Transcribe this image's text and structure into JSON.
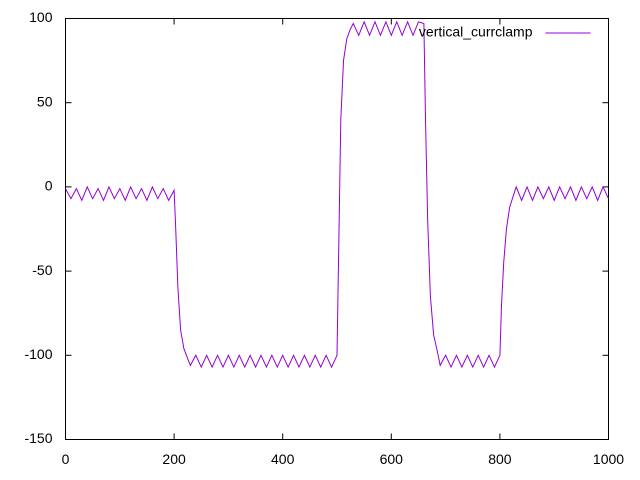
{
  "chart_data": {
    "type": "line",
    "x": [
      0,
      10,
      20,
      30,
      40,
      50,
      60,
      70,
      80,
      90,
      100,
      110,
      120,
      130,
      140,
      150,
      160,
      170,
      180,
      190,
      200,
      203,
      207,
      212,
      218,
      225,
      230,
      240,
      250,
      260,
      270,
      280,
      290,
      300,
      310,
      320,
      330,
      340,
      350,
      360,
      370,
      380,
      390,
      400,
      410,
      420,
      430,
      440,
      450,
      460,
      470,
      480,
      490,
      500,
      503,
      507,
      512,
      518,
      525,
      530,
      540,
      550,
      560,
      570,
      580,
      590,
      600,
      610,
      620,
      630,
      640,
      650,
      660,
      663,
      667,
      672,
      678,
      685,
      690,
      700,
      710,
      720,
      730,
      740,
      750,
      760,
      770,
      780,
      790,
      800,
      803,
      807,
      812,
      818,
      825,
      830,
      840,
      850,
      860,
      870,
      880,
      890,
      900,
      910,
      920,
      930,
      940,
      950,
      960,
      970,
      980,
      990,
      1000
    ],
    "series": [
      {
        "name": "vertical_currclamp",
        "color": "#9400d3",
        "values": [
          -1,
          -7,
          -1,
          -8,
          0,
          -7,
          -1,
          -8,
          0,
          -7,
          -1,
          -8,
          0,
          -7,
          -1,
          -8,
          0,
          -7,
          -1,
          -8,
          -2,
          -25,
          -60,
          -85,
          -96,
          -102,
          -106,
          -100,
          -107,
          -100,
          -107,
          -100,
          -107,
          -100,
          -107,
          -100,
          -107,
          -100,
          -107,
          -100,
          -107,
          -100,
          -107,
          -100,
          -107,
          -100,
          -107,
          -100,
          -107,
          -100,
          -107,
          -100,
          -107,
          -100,
          -40,
          40,
          75,
          88,
          94,
          97,
          90,
          98,
          90,
          98,
          90,
          98,
          90,
          98,
          90,
          98,
          90,
          98,
          97,
          40,
          -20,
          -65,
          -88,
          -98,
          -106,
          -100,
          -107,
          -100,
          -107,
          -100,
          -107,
          -100,
          -107,
          -100,
          -107,
          -100,
          -70,
          -45,
          -25,
          -12,
          -5,
          0,
          -8,
          0,
          -8,
          0,
          -7,
          0,
          -8,
          0,
          -7,
          0,
          -8,
          0,
          -7,
          0,
          -8,
          0,
          -7
        ]
      }
    ],
    "xlim": [
      0,
      1000
    ],
    "ylim": [
      -150,
      100
    ],
    "xticks": [
      0,
      200,
      400,
      600,
      800,
      1000
    ],
    "yticks": [
      -150,
      -100,
      -50,
      0,
      50,
      100
    ],
    "legend": "top-right"
  }
}
